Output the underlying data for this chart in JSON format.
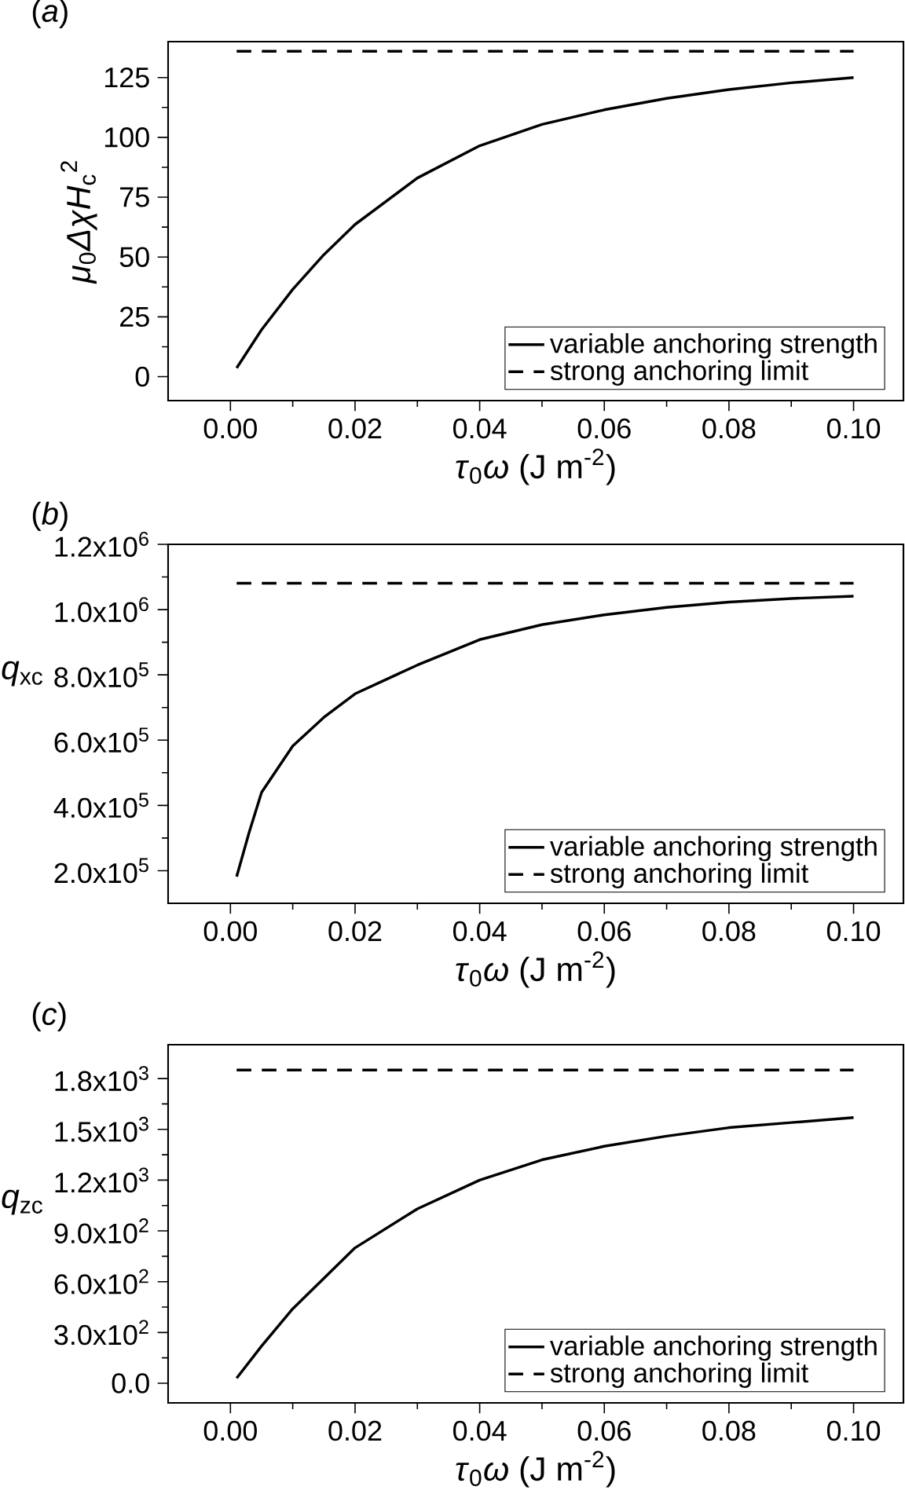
{
  "chart_data": [
    {
      "type": "line",
      "title": "(*a*)",
      "xlabel": "*τ*$_{0}$*ω* (J m$^{-2}$)",
      "ylabel": "*μ*$_{0}$*ΔχH*$_{c}$$^{2}$",
      "xlim": [
        -0.01,
        0.108
      ],
      "ylim": [
        -10,
        140
      ],
      "xticks": [
        {
          "value": 0,
          "label": "0.00"
        },
        {
          "value": 0.02,
          "label": "0.02"
        },
        {
          "value": 0.04,
          "label": "0.04"
        },
        {
          "value": 0.06,
          "label": "0.06"
        },
        {
          "value": 0.08,
          "label": "0.08"
        },
        {
          "value": 0.1,
          "label": "0.10"
        }
      ],
      "yticks": [
        0,
        25,
        50,
        75,
        100,
        125
      ],
      "legend": "bottom right",
      "grid": false,
      "series": [
        {
          "name": "variable anchoring strength",
          "color": "#000000",
          "line_style": "solid",
          "x": [
            0.001,
            0.005,
            0.01,
            0.015,
            0.02,
            0.03,
            0.04,
            0.05,
            0.06,
            0.07,
            0.08,
            0.09,
            0.1
          ],
          "values": [
            3.6,
            19.6,
            36.5,
            51,
            63.6,
            83,
            96.5,
            105.4,
            111.5,
            116.3,
            120,
            122.8,
            125
          ]
        },
        {
          "name": "strong anchoring limit",
          "color": "#000000",
          "line_style": "dashed",
          "x": [
            0.001,
            0.1
          ],
          "values": [
            136,
            136
          ]
        }
      ]
    },
    {
      "type": "line",
      "title": "(*b*)",
      "xlabel": "*τ*$_{0}$*ω* (J m$^{-2}$)",
      "ylabel": "*q*$_{xc}$",
      "xlim": [
        -0.01,
        0.108
      ],
      "ylim": [
        100000,
        1200000
      ],
      "xticks": [
        {
          "value": 0,
          "label": "0.00"
        },
        {
          "value": 0.02,
          "label": "0.02"
        },
        {
          "value": 0.04,
          "label": "0.04"
        },
        {
          "value": 0.06,
          "label": "0.06"
        },
        {
          "value": 0.08,
          "label": "0.08"
        },
        {
          "value": 0.1,
          "label": "0.10"
        }
      ],
      "yticks": [
        {
          "value": 200000,
          "label": "2.0x10$^{5}$"
        },
        {
          "value": 400000,
          "label": "4.0x10$^{5}$"
        },
        {
          "value": 600000,
          "label": "6.0x10$^{5}$"
        },
        {
          "value": 800000,
          "label": "8.0x10$^{5}$"
        },
        {
          "value": 1000000,
          "label": "1.0x10$^{6}$"
        },
        {
          "value": 1200000,
          "label": "1.2x10$^{6}$"
        }
      ],
      "legend": "bottom right",
      "grid": false,
      "series": [
        {
          "name": "variable anchoring strength",
          "color": "#000000",
          "line_style": "solid",
          "x": [
            0.001,
            0.003,
            0.005,
            0.01,
            0.015,
            0.02,
            0.03,
            0.04,
            0.05,
            0.06,
            0.07,
            0.08,
            0.09,
            0.1
          ],
          "values": [
            182000,
            317000,
            440000,
            582000,
            670000,
            742000,
            830000,
            908000,
            954000,
            984000,
            1007000,
            1023000,
            1034000,
            1041000
          ]
        },
        {
          "name": "strong anchoring limit",
          "color": "#000000",
          "line_style": "dashed",
          "x": [
            0.001,
            0.1
          ],
          "values": [
            1081000,
            1081000
          ]
        }
      ]
    },
    {
      "type": "line",
      "title": "(*c*)",
      "xlabel": "*τ*$_{0}$*ω* (J m$^{-2}$)",
      "ylabel": "*q*$_{zc}$",
      "xlim": [
        -0.01,
        0.108
      ],
      "ylim": [
        -116,
        2000
      ],
      "xticks": [
        {
          "value": 0,
          "label": "0.00"
        },
        {
          "value": 0.02,
          "label": "0.02"
        },
        {
          "value": 0.04,
          "label": "0.04"
        },
        {
          "value": 0.06,
          "label": "0.06"
        },
        {
          "value": 0.08,
          "label": "0.08"
        },
        {
          "value": 0.1,
          "label": "0.10"
        }
      ],
      "yticks": [
        {
          "value": 0,
          "label": "0.0"
        },
        {
          "value": 300,
          "label": "3.0x10$^{2}$"
        },
        {
          "value": 600,
          "label": "6.0x10$^{2}$"
        },
        {
          "value": 900,
          "label": "9.0x10$^{2}$"
        },
        {
          "value": 1200,
          "label": "1.2x10$^{3}$"
        },
        {
          "value": 1500,
          "label": "1.5x10$^{3}$"
        },
        {
          "value": 1800,
          "label": "1.8x10$^{3}$"
        }
      ],
      "legend": "bottom right",
      "grid": false,
      "series": [
        {
          "name": "variable anchoring strength",
          "color": "#000000",
          "line_style": "solid",
          "x": [
            0.001,
            0.005,
            0.01,
            0.02,
            0.03,
            0.04,
            0.05,
            0.06,
            0.07,
            0.08,
            0.09,
            0.1
          ],
          "values": [
            30,
            220,
            440,
            800,
            1030,
            1200,
            1320,
            1400,
            1460,
            1510,
            1540,
            1570
          ]
        },
        {
          "name": "strong anchoring limit",
          "color": "#000000",
          "line_style": "dashed",
          "x": [
            0.001,
            0.1
          ],
          "values": [
            1850,
            1850
          ]
        }
      ]
    }
  ]
}
